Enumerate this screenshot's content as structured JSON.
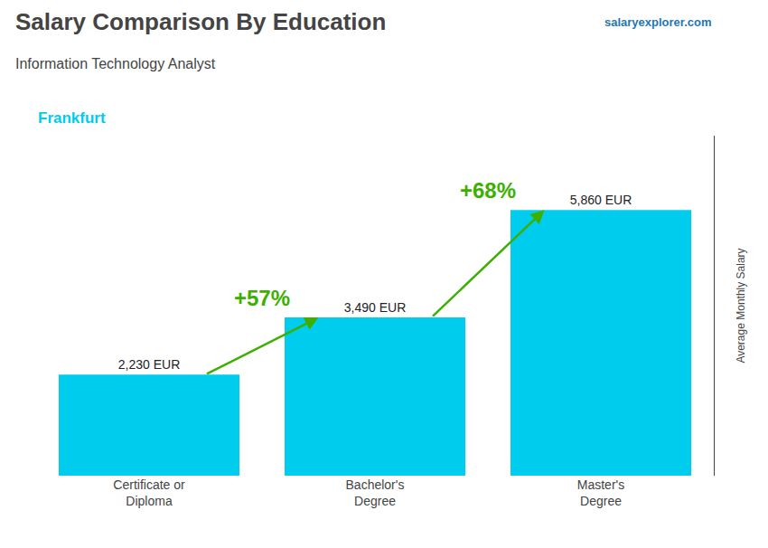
{
  "chart_data": {
    "type": "bar",
    "title": "Salary Comparison By Education",
    "subtitle": "Information Technology Analyst",
    "city": "Frankfurt",
    "watermark": "salaryexplorer.com",
    "ylabel": "Average Monthly Salary",
    "categories": [
      "Certificate or\nDiploma",
      "Bachelor's\nDegree",
      "Master's\nDegree"
    ],
    "values": [
      2230,
      3490,
      5860
    ],
    "value_labels": [
      "2,230 EUR",
      "3,490 EUR",
      "5,860 EUR"
    ],
    "annotations": [
      "+57%",
      "+68%"
    ],
    "color": "#00ccee",
    "ylim": [
      0,
      7500
    ],
    "grid": false,
    "data_labels": true,
    "tick_labels": "x"
  }
}
